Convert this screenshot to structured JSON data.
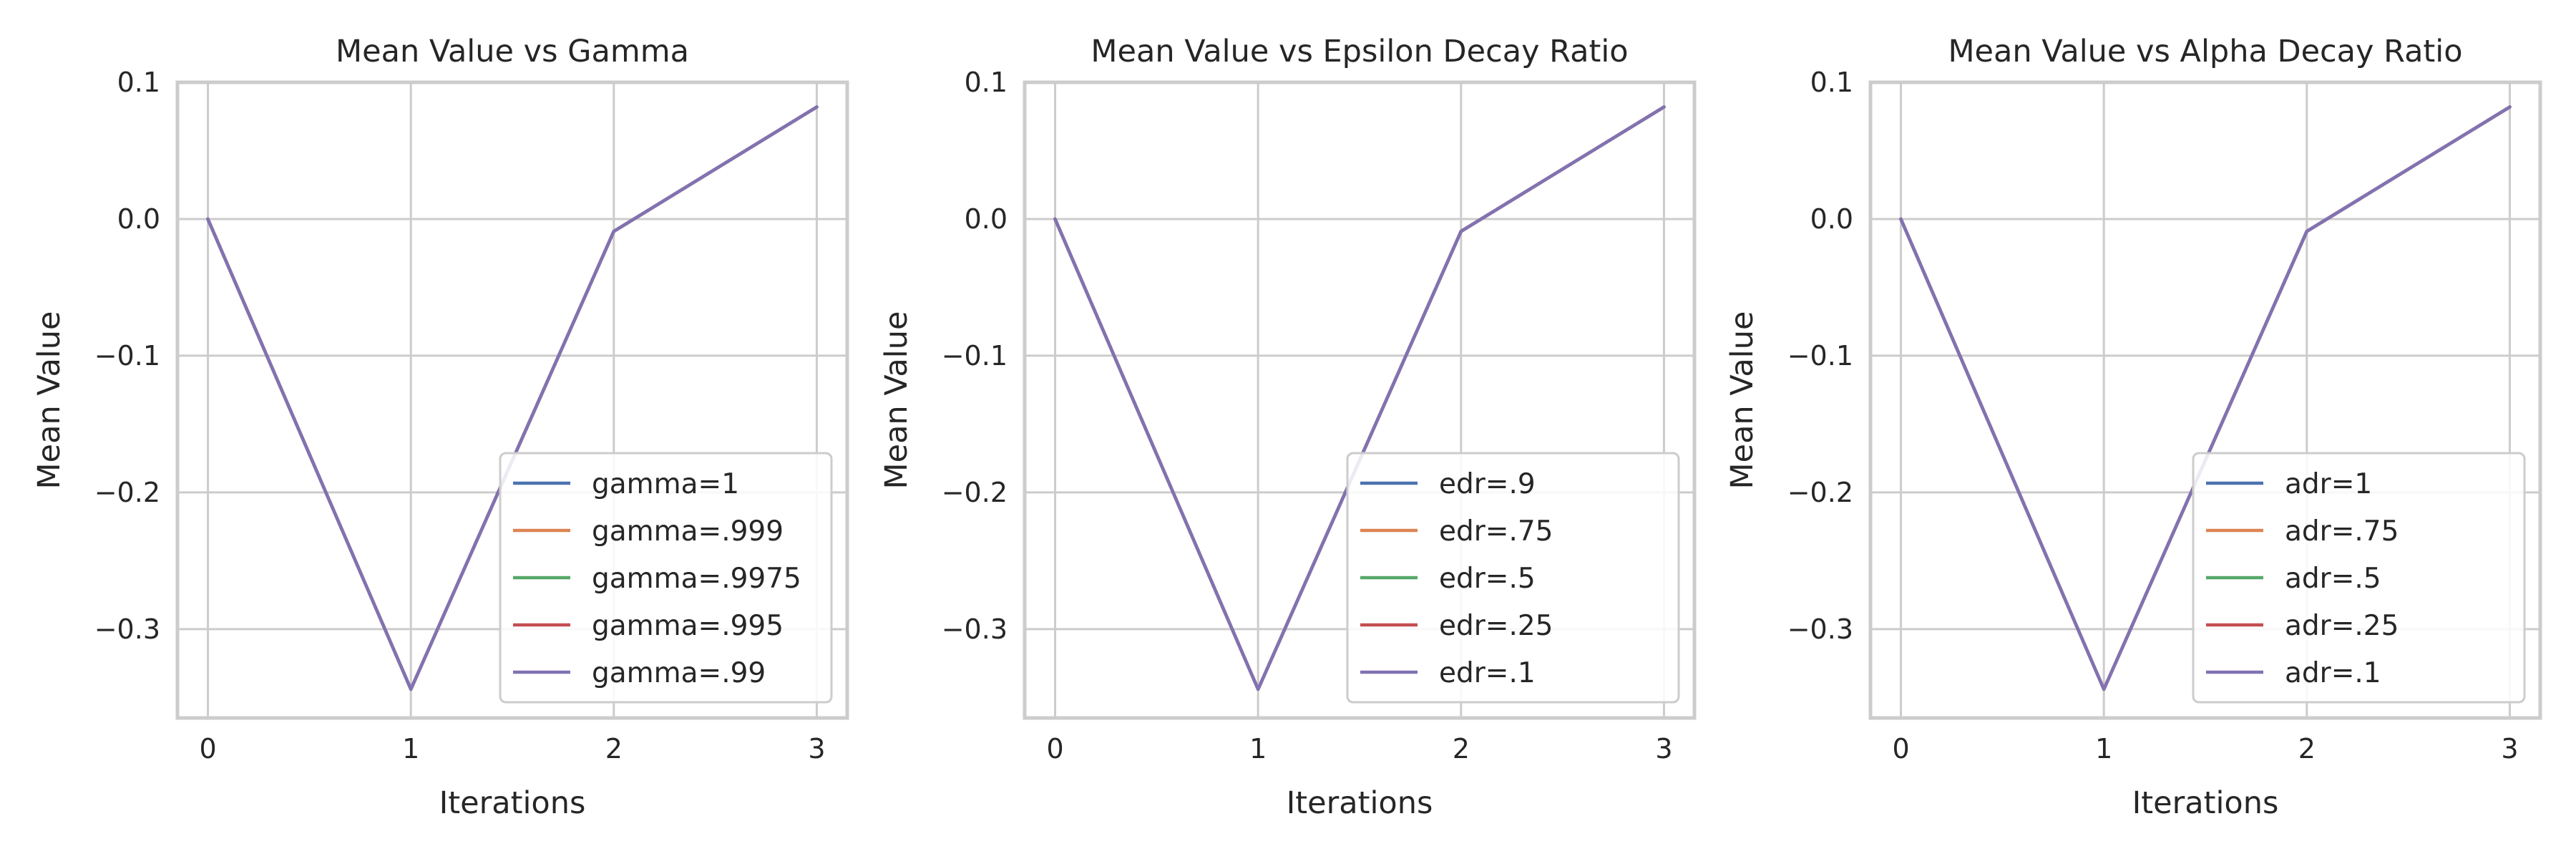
{
  "chart_data": [
    {
      "type": "line",
      "title": "Mean Value vs Gamma",
      "xlabel": "Iterations",
      "ylabel": "Mean Value",
      "x": [
        0,
        1,
        2,
        3
      ],
      "xlim": [
        -0.15,
        3.15
      ],
      "ylim": [
        -0.365,
        0.1
      ],
      "xticks": [
        0,
        1,
        2,
        3
      ],
      "yticks": [
        0.1,
        0.0,
        -0.1,
        -0.2,
        -0.3
      ],
      "grid": true,
      "legend": "lower right",
      "series": [
        {
          "name": "gamma=1",
          "color": "#4c72b0",
          "values": [
            0.0,
            -0.344,
            -0.009,
            0.082
          ]
        },
        {
          "name": "gamma=.999",
          "color": "#dd8452",
          "values": [
            0.0,
            -0.344,
            -0.009,
            0.082
          ]
        },
        {
          "name": "gamma=.9975",
          "color": "#55a868",
          "values": [
            0.0,
            -0.344,
            -0.009,
            0.082
          ]
        },
        {
          "name": "gamma=.995",
          "color": "#c44e52",
          "values": [
            0.0,
            -0.344,
            -0.009,
            0.082
          ]
        },
        {
          "name": "gamma=.99",
          "color": "#8172b3",
          "values": [
            0.0,
            -0.344,
            -0.009,
            0.082
          ]
        }
      ]
    },
    {
      "type": "line",
      "title": "Mean Value vs Epsilon Decay Ratio",
      "xlabel": "Iterations",
      "ylabel": "Mean Value",
      "x": [
        0,
        1,
        2,
        3
      ],
      "xlim": [
        -0.15,
        3.15
      ],
      "ylim": [
        -0.365,
        0.1
      ],
      "xticks": [
        0,
        1,
        2,
        3
      ],
      "yticks": [
        0.1,
        0.0,
        -0.1,
        -0.2,
        -0.3
      ],
      "grid": true,
      "legend": "lower right",
      "series": [
        {
          "name": "edr=.9",
          "color": "#4c72b0",
          "values": [
            0.0,
            -0.344,
            -0.009,
            0.082
          ]
        },
        {
          "name": "edr=.75",
          "color": "#dd8452",
          "values": [
            0.0,
            -0.344,
            -0.009,
            0.082
          ]
        },
        {
          "name": "edr=.5",
          "color": "#55a868",
          "values": [
            0.0,
            -0.344,
            -0.009,
            0.082
          ]
        },
        {
          "name": "edr=.25",
          "color": "#c44e52",
          "values": [
            0.0,
            -0.344,
            -0.009,
            0.082
          ]
        },
        {
          "name": "edr=.1",
          "color": "#8172b3",
          "values": [
            0.0,
            -0.344,
            -0.009,
            0.082
          ]
        }
      ]
    },
    {
      "type": "line",
      "title": "Mean Value vs Alpha Decay Ratio",
      "xlabel": "Iterations",
      "ylabel": "Mean Value",
      "x": [
        0,
        1,
        2,
        3
      ],
      "xlim": [
        -0.15,
        3.15
      ],
      "ylim": [
        -0.365,
        0.1
      ],
      "xticks": [
        0,
        1,
        2,
        3
      ],
      "yticks": [
        0.1,
        0.0,
        -0.1,
        -0.2,
        -0.3
      ],
      "grid": true,
      "legend": "lower right",
      "series": [
        {
          "name": "adr=1",
          "color": "#4c72b0",
          "values": [
            0.0,
            -0.344,
            -0.009,
            0.082
          ]
        },
        {
          "name": "adr=.75",
          "color": "#dd8452",
          "values": [
            0.0,
            -0.344,
            -0.009,
            0.082
          ]
        },
        {
          "name": "adr=.5",
          "color": "#55a868",
          "values": [
            0.0,
            -0.344,
            -0.009,
            0.082
          ]
        },
        {
          "name": "adr=.25",
          "color": "#c44e52",
          "values": [
            0.0,
            -0.344,
            -0.009,
            0.082
          ]
        },
        {
          "name": "adr=.1",
          "color": "#8172b3",
          "values": [
            0.0,
            -0.344,
            -0.009,
            0.082
          ]
        }
      ]
    }
  ]
}
